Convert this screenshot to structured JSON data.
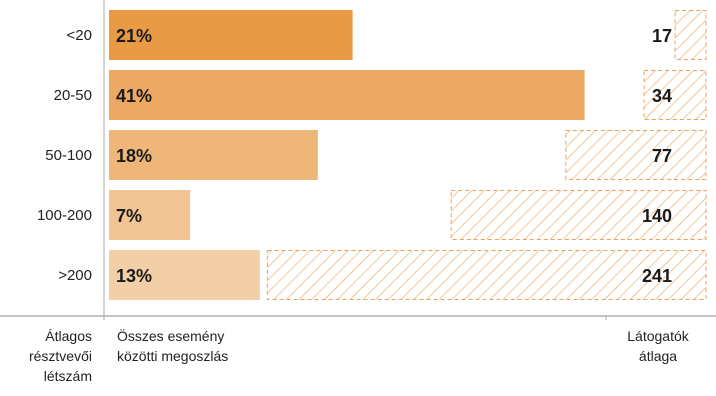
{
  "chart_data": {
    "type": "bar",
    "categories": [
      "<20",
      "20-50",
      "50-100",
      "100-200",
      ">200"
    ],
    "series": [
      {
        "values": [
          21,
          41,
          18,
          7,
          13
        ],
        "labels": [
          "21%",
          "41%",
          "18%",
          "7%",
          "13%"
        ]
      },
      {
        "values": [
          17,
          34,
          77,
          140,
          241
        ],
        "labels": [
          "17",
          "34",
          "77",
          "140",
          "241"
        ]
      }
    ],
    "colors": {
      "share_bars": [
        "#e89a45",
        "#eda964",
        "#efb679",
        "#f1c593",
        "#f2cfa6"
      ],
      "hatch": "#eaa25a"
    }
  },
  "footer": {
    "left": [
      "Átlagos",
      "résztvevői",
      "létszám"
    ],
    "middle": [
      "Összes esemény",
      "közötti megoszlás"
    ],
    "right": [
      "Látogatók",
      "átlaga"
    ]
  }
}
